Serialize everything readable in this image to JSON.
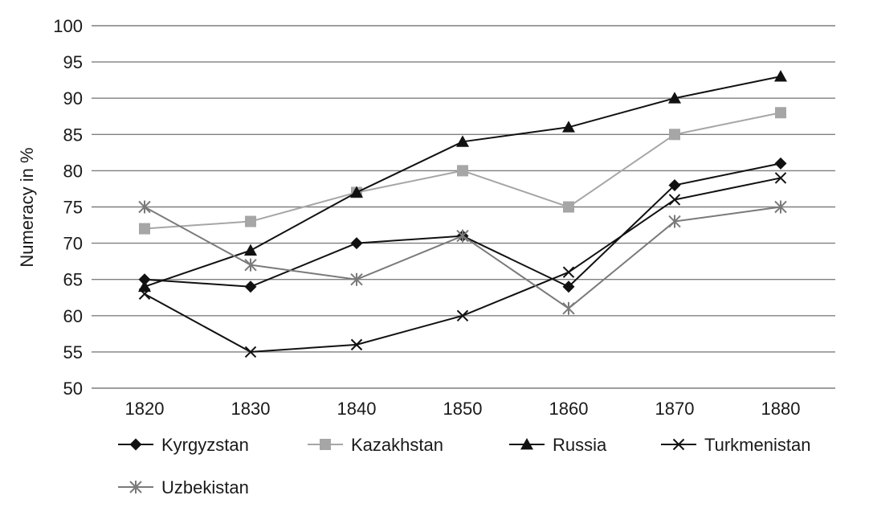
{
  "chart_data": {
    "type": "line",
    "title": "",
    "xlabel": "",
    "ylabel": "Numeracy in %",
    "x": [
      1820,
      1830,
      1840,
      1850,
      1860,
      1870,
      1880
    ],
    "ylim": [
      50,
      100
    ],
    "yticks": [
      50,
      55,
      60,
      65,
      70,
      75,
      80,
      85,
      90,
      95,
      100
    ],
    "grid": "horizontal",
    "legend_position": "bottom",
    "series": [
      {
        "name": "Kyrgyzstan",
        "values": [
          65,
          64,
          70,
          71,
          64,
          78,
          81
        ],
        "color": "#111111",
        "marker": "diamond"
      },
      {
        "name": "Kazakhstan",
        "values": [
          72,
          73,
          77,
          80,
          75,
          85,
          88
        ],
        "color": "#a6a6a6",
        "marker": "square"
      },
      {
        "name": "Russia",
        "values": [
          64,
          69,
          77,
          84,
          86,
          90,
          93
        ],
        "color": "#111111",
        "marker": "triangle"
      },
      {
        "name": "Turkmenistan",
        "values": [
          63,
          55,
          56,
          60,
          66,
          76,
          79
        ],
        "color": "#111111",
        "marker": "x"
      },
      {
        "name": "Uzbekistan",
        "values": [
          75,
          67,
          65,
          71,
          61,
          73,
          75
        ],
        "color": "#7a7a7a",
        "marker": "star"
      }
    ]
  }
}
